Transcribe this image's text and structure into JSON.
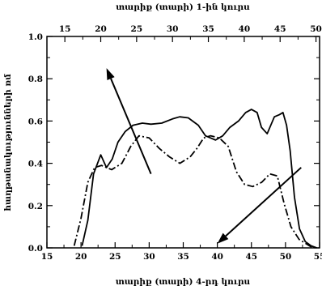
{
  "chart_data": {
    "type": "line",
    "xlabel_bottom": "տարիք (տարի) 4-րդ կուրս",
    "xlabel_top": "տարիք (տարի) 1-ին կուրս",
    "ylabel": "հաղթանակությունների ռմ",
    "xlim_bottom": [
      15,
      55
    ],
    "xlim_top": [
      12.5,
      50.5
    ],
    "ylim": [
      0,
      1.0
    ],
    "x_ticks_bottom": [
      "15",
      "20",
      "25",
      "30",
      "35",
      "40",
      "45",
      "50",
      "55"
    ],
    "x_ticks_top": [
      "15",
      "20",
      "25",
      "30",
      "35",
      "40",
      "45",
      "50"
    ],
    "y_ticks": [
      "0.0",
      "0.2",
      "0.4",
      "0.6",
      "0.8",
      "1.0"
    ],
    "grid": false,
    "series": [
      {
        "axis": "top",
        "style": "solid",
        "color": "#000000",
        "x": [
          17.4,
          18.2,
          19.0,
          20.0,
          20.8,
          21.6,
          22.4,
          23.4,
          24.5,
          25.8,
          27.0,
          28.5,
          30.0,
          31.0,
          32.2,
          33.6,
          34.6,
          36.0,
          37.0,
          38.0,
          39.2,
          40.2,
          41.0,
          41.8,
          42.4,
          43.2,
          44.2,
          44.9,
          45.4,
          45.9,
          46.4,
          47.0,
          47.7,
          48.5,
          49.3,
          50.1
        ],
        "y": [
          0.01,
          0.13,
          0.35,
          0.44,
          0.38,
          0.42,
          0.5,
          0.55,
          0.58,
          0.59,
          0.585,
          0.59,
          0.61,
          0.62,
          0.615,
          0.58,
          0.53,
          0.51,
          0.53,
          0.57,
          0.6,
          0.64,
          0.655,
          0.64,
          0.57,
          0.54,
          0.62,
          0.63,
          0.64,
          0.58,
          0.46,
          0.24,
          0.09,
          0.03,
          0.01,
          0.0
        ]
      },
      {
        "axis": "bottom",
        "style": "dash-dot",
        "color": "#000000",
        "x": [
          19.0,
          20.0,
          21.0,
          22.0,
          23.0,
          24.5,
          26.0,
          27.3,
          28.5,
          30.0,
          31.5,
          33.0,
          34.5,
          36.0,
          37.0,
          38.0,
          39.0,
          40.3,
          41.6,
          42.8,
          44.0,
          45.2,
          46.5,
          47.7,
          48.8,
          49.8,
          50.8,
          52.0,
          53.0,
          54.0
        ],
        "y": [
          0.01,
          0.14,
          0.31,
          0.38,
          0.39,
          0.37,
          0.4,
          0.48,
          0.53,
          0.52,
          0.47,
          0.43,
          0.4,
          0.43,
          0.47,
          0.52,
          0.53,
          0.52,
          0.48,
          0.36,
          0.3,
          0.29,
          0.31,
          0.35,
          0.34,
          0.21,
          0.1,
          0.04,
          0.02,
          0.0
        ]
      }
    ],
    "annotations": [
      {
        "type": "arrow",
        "from": [
          27.0,
          0.35
        ],
        "to": [
          20.8,
          0.85
        ],
        "axis": "top"
      },
      {
        "type": "arrow",
        "from": [
          52.3,
          0.38
        ],
        "to": [
          40.0,
          0.02
        ],
        "axis": "bottom"
      }
    ]
  }
}
